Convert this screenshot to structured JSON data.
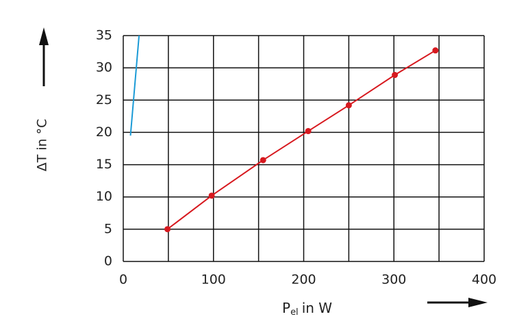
{
  "chart_data": {
    "type": "line",
    "ylabel": "ΔT in °C",
    "xlabel": "P",
    "xlabel_subscript": "el",
    "xlabel_suffix": "in W",
    "xlim": [
      0,
      400
    ],
    "xticks": [
      0,
      100,
      200,
      300,
      400
    ],
    "xminor_grid": [
      50,
      150,
      250,
      350
    ],
    "ylim": [
      0,
      35
    ],
    "yticks": [
      0,
      5,
      10,
      15,
      20,
      25,
      30,
      35
    ],
    "grid": true,
    "series": [
      {
        "color": "#d7191f",
        "marker": "circle",
        "x": [
          49,
          98,
          155,
          205,
          250,
          301,
          346
        ],
        "values": [
          5,
          10.2,
          15.7,
          20.2,
          24.2,
          28.9,
          32.7
        ]
      },
      {
        "color": "#1a9ad6",
        "marker": "none",
        "x": [
          8,
          17.5
        ],
        "values": [
          19.5,
          35
        ]
      }
    ]
  }
}
